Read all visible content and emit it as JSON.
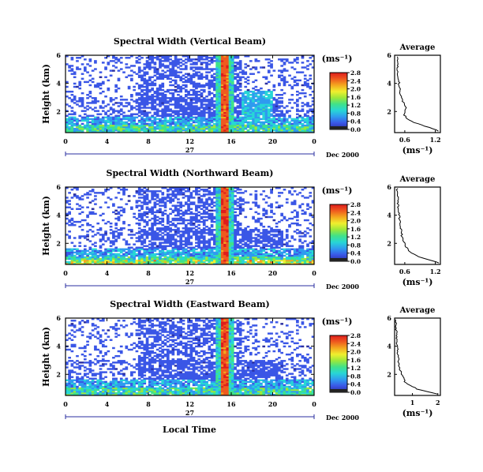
{
  "figure": {
    "local_time_label": "Local Time",
    "avg_xlabel": "(ms⁻¹)"
  },
  "chart_data": [
    {
      "type": "heatmap",
      "title": "Spectral Width (Vertical Beam)",
      "ylabel": "Height (km)",
      "xlabel": "Local Time",
      "x_range": [
        0,
        24
      ],
      "x_ticks": [
        "0",
        "4",
        "8",
        "12",
        "16",
        "20",
        "0"
      ],
      "day_label": "27",
      "date_label": "Dec 2000",
      "y_range": [
        0.5,
        6
      ],
      "y_ticks": [
        "2",
        "4",
        "6"
      ],
      "colorbar": {
        "unit": "(ms⁻¹)",
        "range": [
          0.0,
          2.8
        ],
        "ticks": [
          "2.8",
          "2.4",
          "2.0",
          "1.6",
          "1.2",
          "0.8",
          "0.4",
          "0.0"
        ],
        "colormap": [
          "#2b2fa0",
          "#3a56e6",
          "#2f9bef",
          "#27d6d6",
          "#3fe28a",
          "#9be83a",
          "#f0ef2e",
          "#f4a81f",
          "#ef5a1f",
          "#de1c1c"
        ]
      },
      "grid": false
    },
    {
      "type": "line",
      "title": "Average",
      "xlabel": "(ms⁻¹)",
      "x_ticks": [
        "0.6",
        "1.2"
      ],
      "y_ticks": [
        "2",
        "4",
        "6"
      ],
      "xlim": [
        0.4,
        1.3
      ],
      "ylim": [
        0.5,
        6
      ],
      "x": [
        1.27,
        1.22,
        1.1,
        0.95,
        0.8,
        0.65,
        0.58,
        0.62,
        0.55,
        0.5,
        0.48,
        0.46,
        0.45
      ],
      "y": [
        0.6,
        0.7,
        0.85,
        1.0,
        1.2,
        1.5,
        1.8,
        2.3,
        2.8,
        3.5,
        4.2,
        5.0,
        5.8
      ]
    },
    {
      "type": "heatmap",
      "title": "Spectral Width (Northward Beam)",
      "ylabel": "Height (km)",
      "xlabel": "Local Time",
      "x_range": [
        0,
        24
      ],
      "x_ticks": [
        "0",
        "4",
        "8",
        "12",
        "16",
        "20",
        "0"
      ],
      "day_label": "27",
      "date_label": "Dec 2000",
      "y_range": [
        0.5,
        6
      ],
      "y_ticks": [
        "2",
        "4",
        "6"
      ],
      "colorbar": {
        "unit": "(ms⁻¹)",
        "range": [
          0.0,
          2.8
        ],
        "ticks": [
          "2.8",
          "2.4",
          "2.0",
          "1.6",
          "1.2",
          "0.8",
          "0.4",
          "0.0"
        ],
        "colormap": [
          "#2b2fa0",
          "#3a56e6",
          "#2f9bef",
          "#27d6d6",
          "#3fe28a",
          "#9be83a",
          "#f0ef2e",
          "#f4a81f",
          "#ef5a1f",
          "#de1c1c"
        ]
      },
      "grid": false
    },
    {
      "type": "line",
      "title": "Average",
      "xlabel": "(ms⁻¹)",
      "x_ticks": [
        "0.6",
        "1.2"
      ],
      "y_ticks": [
        "2",
        "4",
        "6"
      ],
      "xlim": [
        0.4,
        1.3
      ],
      "ylim": [
        0.5,
        6
      ],
      "x": [
        1.28,
        1.2,
        1.05,
        0.9,
        0.78,
        0.68,
        0.6,
        0.55,
        0.52,
        0.5,
        0.48,
        0.46,
        0.45
      ],
      "y": [
        0.6,
        0.7,
        0.85,
        1.0,
        1.2,
        1.5,
        1.9,
        2.4,
        3.0,
        3.6,
        4.3,
        5.0,
        5.8
      ]
    },
    {
      "type": "heatmap",
      "title": "Spectral Width (Eastward Beam)",
      "ylabel": "Height (km)",
      "xlabel": "Local Time",
      "x_range": [
        0,
        24
      ],
      "x_ticks": [
        "0",
        "4",
        "8",
        "12",
        "16",
        "20",
        "0"
      ],
      "day_label": "27",
      "date_label": "Dec 2000",
      "y_range": [
        0.5,
        6
      ],
      "y_ticks": [
        "2",
        "4",
        "6"
      ],
      "colorbar": {
        "unit": "(ms⁻¹)",
        "range": [
          0.0,
          2.8
        ],
        "ticks": [
          "2.8",
          "2.4",
          "2.0",
          "1.6",
          "1.2",
          "0.8",
          "0.4",
          "0.0"
        ],
        "colormap": [
          "#2b2fa0",
          "#3a56e6",
          "#2f9bef",
          "#27d6d6",
          "#3fe28a",
          "#9be83a",
          "#f0ef2e",
          "#f4a81f",
          "#ef5a1f",
          "#de1c1c"
        ]
      },
      "grid": false
    },
    {
      "type": "line",
      "title": "Average",
      "xlabel": "(ms⁻¹)",
      "x_ticks": [
        "1",
        "2"
      ],
      "y_ticks": [
        "2",
        "4",
        "6"
      ],
      "xlim": [
        0.3,
        2.1
      ],
      "ylim": [
        0.5,
        6
      ],
      "x": [
        2.0,
        1.6,
        1.2,
        0.9,
        0.7,
        0.6,
        0.5,
        0.45,
        0.42,
        0.4,
        0.38,
        0.36,
        0.35
      ],
      "y": [
        0.6,
        0.75,
        0.95,
        1.2,
        1.5,
        1.9,
        2.4,
        3.0,
        3.6,
        4.2,
        4.8,
        5.4,
        5.9
      ]
    }
  ]
}
